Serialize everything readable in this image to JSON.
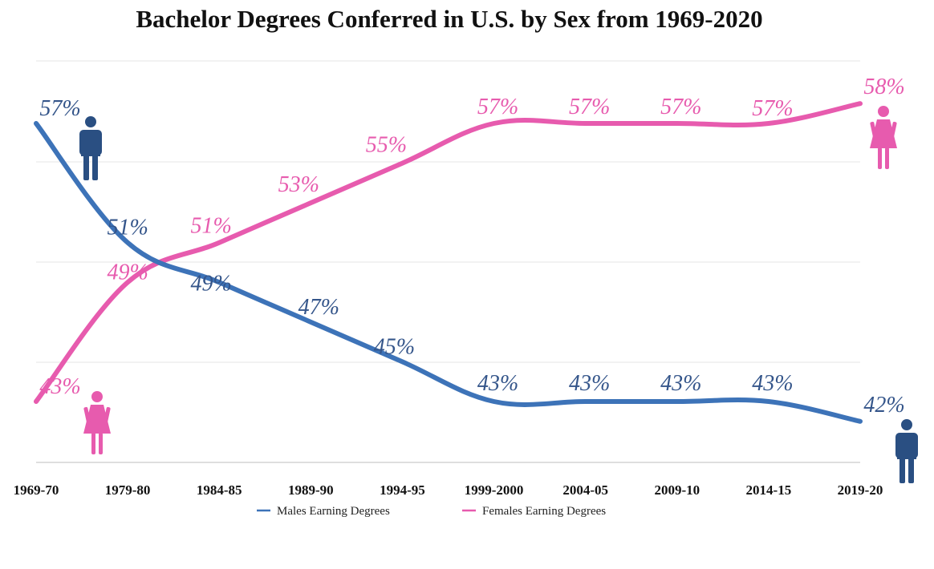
{
  "chart_data": {
    "type": "line",
    "title": "Bachelor Degrees Conferred in U.S. by Sex from 1969-2020",
    "xlabel": "",
    "ylabel": "",
    "categories": [
      "1969-70",
      "1979-80",
      "1984-85",
      "1989-90",
      "1994-95",
      "1999-2000",
      "2004-05",
      "2009-10",
      "2014-15",
      "2019-20"
    ],
    "ylim": [
      40,
      60
    ],
    "grid": true,
    "legend_position": "bottom",
    "series": [
      {
        "name": "Males Earning Degrees",
        "color": "#3d73b8",
        "values": [
          57,
          51,
          49,
          47,
          45,
          43,
          43,
          43,
          43,
          42
        ],
        "labels": [
          "57%",
          "51%",
          "49%",
          "47%",
          "45%",
          "43%",
          "43%",
          "43%",
          "43%",
          "42%"
        ]
      },
      {
        "name": "Females Earning Degrees",
        "color": "#e75bae",
        "values": [
          43,
          49,
          51,
          53,
          55,
          57,
          57,
          57,
          57,
          58
        ],
        "labels": [
          "43%",
          "49%",
          "51%",
          "53%",
          "55%",
          "57%",
          "57%",
          "57%",
          "57%",
          "58%"
        ]
      }
    ],
    "icons": [
      "male-figure-icon",
      "female-figure-icon"
    ]
  }
}
